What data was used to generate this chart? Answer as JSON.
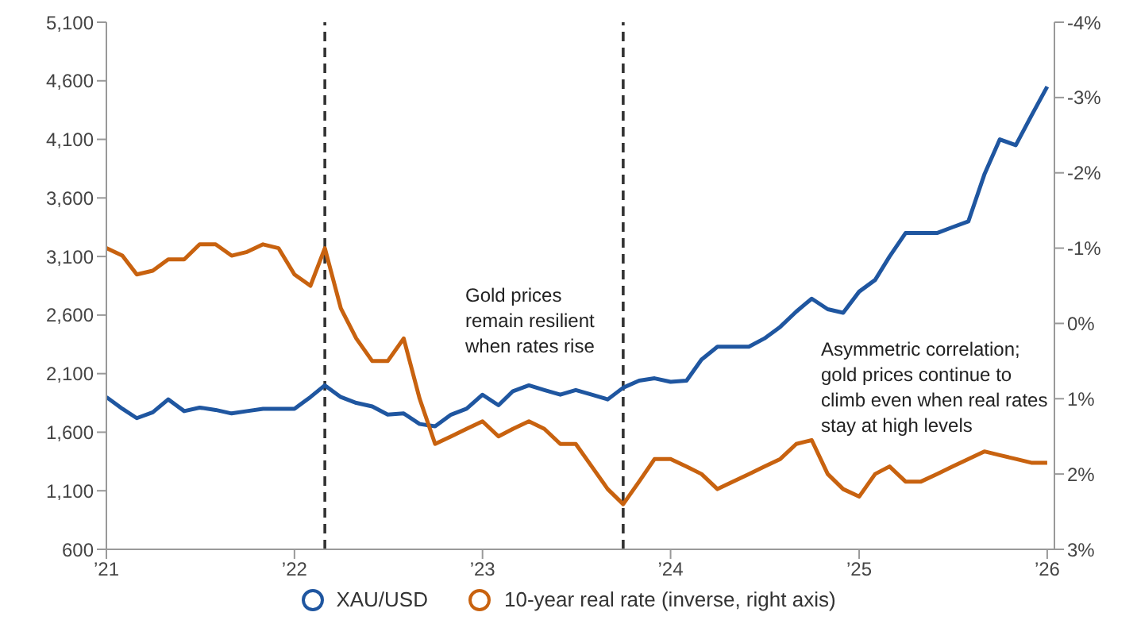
{
  "chart_data": {
    "type": "line",
    "x": [
      "2021-01",
      "2021-02",
      "2021-03",
      "2021-04",
      "2021-05",
      "2021-06",
      "2021-07",
      "2021-08",
      "2021-09",
      "2021-10",
      "2021-11",
      "2021-12",
      "2022-01",
      "2022-02",
      "2022-03",
      "2022-04",
      "2022-05",
      "2022-06",
      "2022-07",
      "2022-08",
      "2022-09",
      "2022-10",
      "2022-11",
      "2022-12",
      "2023-01",
      "2023-02",
      "2023-03",
      "2023-04",
      "2023-05",
      "2023-06",
      "2023-07",
      "2023-08",
      "2023-09",
      "2023-10",
      "2023-11",
      "2023-12",
      "2024-01",
      "2024-02",
      "2024-03",
      "2024-04",
      "2024-05",
      "2024-06",
      "2024-07",
      "2024-08",
      "2024-09",
      "2024-10",
      "2024-11",
      "2024-12",
      "2025-01",
      "2025-02",
      "2025-03",
      "2025-04",
      "2025-05",
      "2025-06",
      "2025-07",
      "2025-08",
      "2025-09",
      "2025-10",
      "2025-11",
      "2025-12",
      "2026-01"
    ],
    "series": [
      {
        "name": "XAU/USD",
        "color": "#1f56a0",
        "values": [
          1900,
          1800,
          1720,
          1770,
          1880,
          1780,
          1810,
          1790,
          1760,
          1780,
          1800,
          1800,
          1800,
          1900,
          2000,
          1900,
          1850,
          1820,
          1750,
          1760,
          1670,
          1650,
          1750,
          1800,
          1920,
          1830,
          1950,
          2000,
          1960,
          1920,
          1960,
          1920,
          1880,
          1980,
          2040,
          2060,
          2030,
          2040,
          2220,
          2330,
          2330,
          2330,
          2400,
          2500,
          2630,
          2740,
          2650,
          2620,
          2800,
          2900,
          3100,
          3300,
          3300,
          3300,
          3350,
          3400,
          3800,
          4100,
          4050,
          4300,
          4550
        ]
      },
      {
        "name": "10-year real rate (inverse, right axis)",
        "color": "#c8620f",
        "axis": "y2",
        "values": [
          -1.0,
          -0.9,
          -0.65,
          -0.7,
          -0.85,
          -0.85,
          -1.05,
          -1.05,
          -0.9,
          -0.95,
          -1.05,
          -1.0,
          -0.65,
          -0.5,
          -1.0,
          -0.2,
          0.2,
          0.5,
          0.5,
          0.2,
          1.0,
          1.6,
          1.5,
          1.4,
          1.3,
          1.5,
          1.4,
          1.3,
          1.4,
          1.6,
          1.6,
          1.9,
          2.2,
          2.4,
          2.1,
          1.8,
          1.8,
          1.9,
          2.0,
          2.2,
          2.1,
          2.0,
          1.9,
          1.8,
          1.6,
          1.55,
          2.0,
          2.2,
          2.3,
          2.0,
          1.9,
          2.1,
          2.1,
          2.0,
          1.9,
          1.8,
          1.7,
          1.75,
          1.8,
          1.85,
          1.85
        ]
      }
    ],
    "xlim": [
      "2021-01-01",
      "2026-01-15"
    ],
    "xticks": [
      {
        "value": "2021-01-01",
        "label": "’21"
      },
      {
        "value": "2022-01-01",
        "label": "’22"
      },
      {
        "value": "2023-01-01",
        "label": "’23"
      },
      {
        "value": "2024-01-01",
        "label": "’24"
      },
      {
        "value": "2025-01-01",
        "label": "’25"
      },
      {
        "value": "2026-01-01",
        "label": "’26"
      }
    ],
    "ylim": [
      600,
      5100
    ],
    "yticks": [
      {
        "value": 600,
        "label": "600"
      },
      {
        "value": 1100,
        "label": "1,100"
      },
      {
        "value": 1600,
        "label": "1,600"
      },
      {
        "value": 2100,
        "label": "2,100"
      },
      {
        "value": 2600,
        "label": "2,600"
      },
      {
        "value": 3100,
        "label": "3,100"
      },
      {
        "value": 3600,
        "label": "3,600"
      },
      {
        "value": 4100,
        "label": "4,100"
      },
      {
        "value": 4600,
        "label": "4,600"
      },
      {
        "value": 5100,
        "label": "5,100"
      }
    ],
    "y2lim": [
      3,
      -4
    ],
    "y2ticks": [
      {
        "value": 3,
        "label": "3%"
      },
      {
        "value": 2,
        "label": "2%"
      },
      {
        "value": 1,
        "label": "1%"
      },
      {
        "value": 0,
        "label": "0%"
      },
      {
        "value": -1,
        "label": "-1%"
      },
      {
        "value": -2,
        "label": "-2%"
      },
      {
        "value": -3,
        "label": "-3%"
      },
      {
        "value": -4,
        "label": "-4%"
      }
    ],
    "ref_lines": [
      {
        "axis": "x",
        "value": "2022-03",
        "color": "#333333",
        "line_style": "dashed"
      },
      {
        "axis": "x",
        "value": "2023-10",
        "color": "#333333",
        "line_style": "dashed"
      }
    ],
    "annotations": [
      "Gold prices remain resilient when rates rise",
      "Asymmetric correlation; gold prices continue to climb even when real rates stay at high levels"
    ],
    "legend": "bottom",
    "grid": false,
    "marker": "none",
    "line_style": "solid"
  }
}
